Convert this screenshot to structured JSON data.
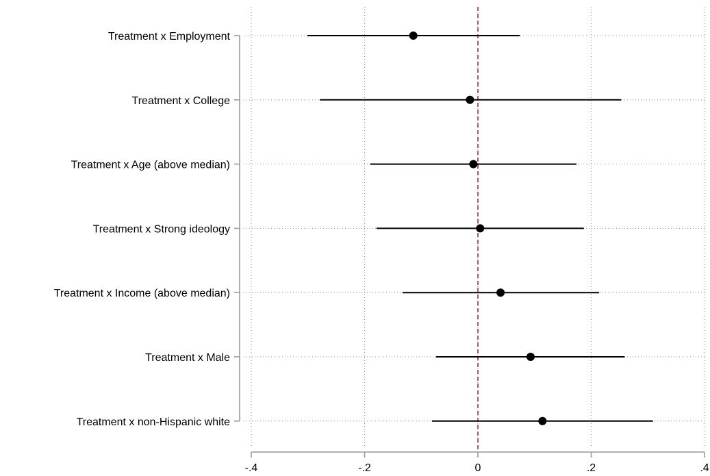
{
  "chart_data": {
    "type": "coefficient-plot",
    "title": "",
    "xlabel": "",
    "ylabel": "",
    "xlim": [
      -0.4,
      0.4
    ],
    "xticks": [
      -0.4,
      -0.2,
      0,
      0.2,
      0.4
    ],
    "xtick_labels": [
      "-.4",
      "-.2",
      "0",
      ".2",
      ".4"
    ],
    "grid": "dotted",
    "reference_line": {
      "x": 0,
      "color": "#8b1a1a",
      "style": "dashed"
    },
    "marker_color": "#000000",
    "series": [
      {
        "label": "Treatment x Employment",
        "estimate": -0.114,
        "ci_low": -0.301,
        "ci_high": 0.074
      },
      {
        "label": "Treatment x College",
        "estimate": -0.014,
        "ci_low": -0.279,
        "ci_high": 0.253
      },
      {
        "label": "Treatment x Age (above median)",
        "estimate": -0.008,
        "ci_low": -0.19,
        "ci_high": 0.174
      },
      {
        "label": "Treatment x Strong ideology",
        "estimate": 0.004,
        "ci_low": -0.179,
        "ci_high": 0.187
      },
      {
        "label": "Treatment x Income (above median)",
        "estimate": 0.04,
        "ci_low": -0.133,
        "ci_high": 0.214
      },
      {
        "label": "Treatment x Male",
        "estimate": 0.093,
        "ci_low": -0.074,
        "ci_high": 0.259
      },
      {
        "label": "Treatment x non-Hispanic white",
        "estimate": 0.114,
        "ci_low": -0.081,
        "ci_high": 0.309
      }
    ]
  }
}
